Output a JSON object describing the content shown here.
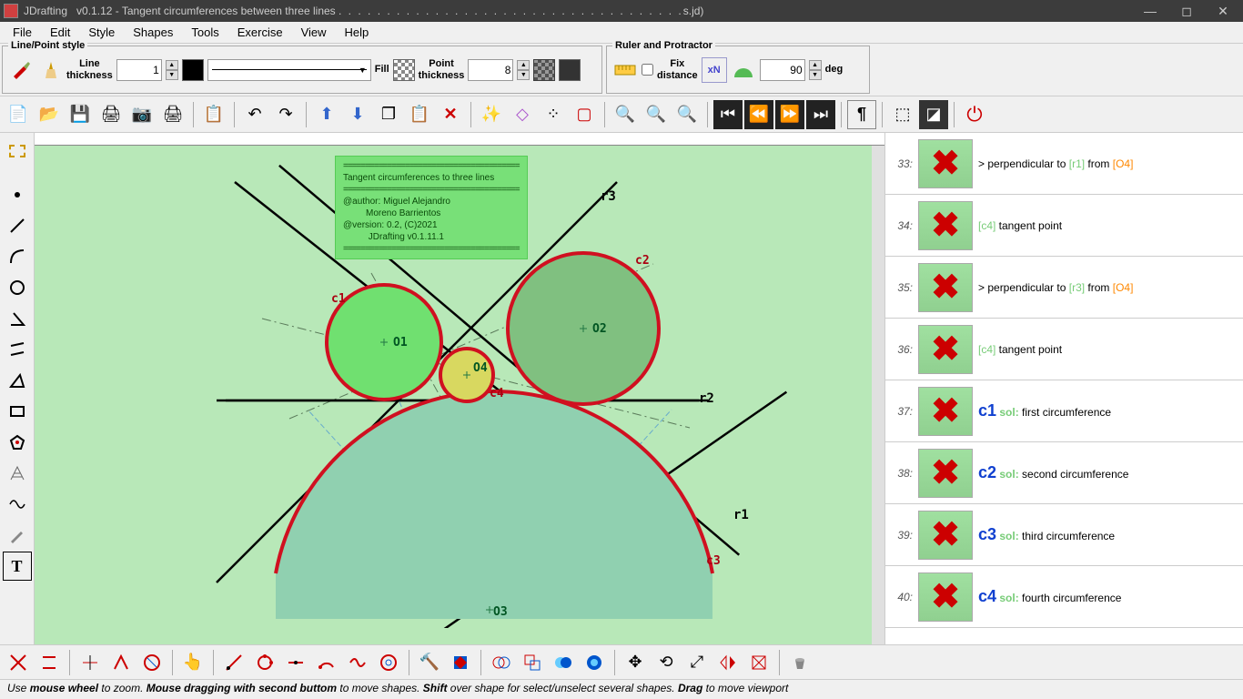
{
  "titlebar": {
    "app": "JDrafting",
    "version": "v0.1.12",
    "doc": "Tangent circumferences between three lines",
    "suffix": "s.jd)"
  },
  "menu": [
    "File",
    "Edit",
    "Style",
    "Shapes",
    "Tools",
    "Exercise",
    "View",
    "Help"
  ],
  "panels": {
    "linepoint": {
      "title": "Line/Point style",
      "thickness_label": "Line\nthickness",
      "thickness_val": "1",
      "fill_label": "Fill",
      "point_label": "Point\nthickness",
      "point_val": "8"
    },
    "ruler": {
      "title": "Ruler and Protractor",
      "fix_label": "Fix\ndistance",
      "deg_label": "deg",
      "deg_val": "90"
    }
  },
  "colors": {
    "line": "#000000",
    "point": "#333333",
    "canvas_bg": "#b8e8b8",
    "circle_stroke": "#d01020",
    "c1_fill": "#70e070",
    "c2_fill": "#80c080",
    "c3_fill": "#90d0b0",
    "c4_fill": "#d8d860",
    "info_bg": "#78e078"
  },
  "drawing": {
    "labels": {
      "r1": "r1",
      "r2": "r2",
      "r3": "r3",
      "c1": "c1",
      "c2": "c2",
      "c3": "c3",
      "c4": "c4",
      "o1": "O1",
      "o2": "O2",
      "o3": "O3",
      "o4": "O4"
    },
    "info": {
      "title": "Tangent circumferences to three lines",
      "author": "@author: Miguel Alejandro",
      "author2": "         Moreno Barrientos",
      "version": "@version: 0.2, (C)2021",
      "version2": "          JDrafting v0.1.11.1"
    }
  },
  "steps": [
    {
      "n": "33:",
      "html": "> perpendicular to <span class='bracket-r'>[r1]</span> from <span class='bracket-o'>[O4]</span>"
    },
    {
      "n": "34:",
      "html": "<span class='bracket-r'>[c4]</span> tangent point"
    },
    {
      "n": "35:",
      "html": "> perpendicular to <span class='bracket-r'>[r3]</span> from <span class='bracket-o'>[O4]</span>"
    },
    {
      "n": "36:",
      "html": "<span class='bracket-r'>[c4]</span> tangent point"
    },
    {
      "n": "37:",
      "html": "<span class='c-label'>c1</span> <span class='sol'>sol:</span> first circumference"
    },
    {
      "n": "38:",
      "html": "<span class='c-label'>c2</span> <span class='sol'>sol:</span> second circumference"
    },
    {
      "n": "39:",
      "html": "<span class='c-label'>c3</span> <span class='sol'>sol:</span> third circumference"
    },
    {
      "n": "40:",
      "html": "<span class='c-label'>c4</span> <span class='sol'>sol:</span> fourth circumference"
    }
  ],
  "status": "Use <b>mouse wheel</b> to zoom. <b>Mouse dragging with second buttom</b> to move shapes. <b>Shift</b> over shape for select/unselect several shapes. <b>Drag</b> to move viewport"
}
